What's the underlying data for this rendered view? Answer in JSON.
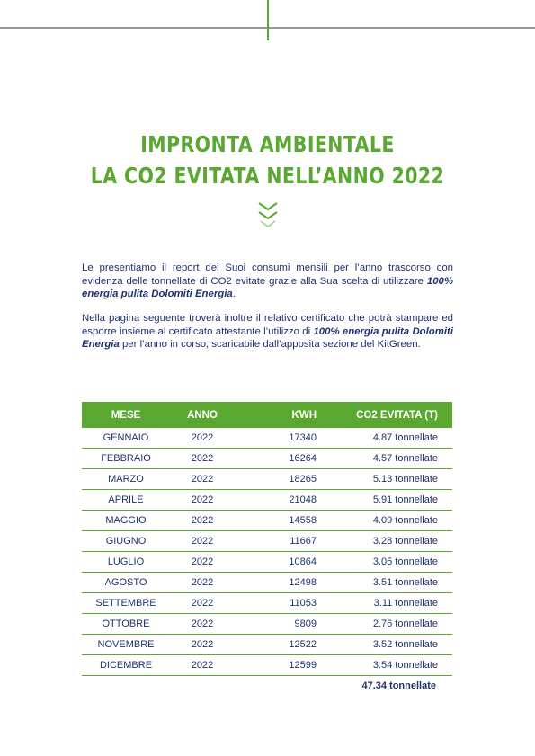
{
  "header": {
    "title_line1": "IMPRONTA AMBIENTALE",
    "title_line2": "LA CO2 EVITATA NELL’ANNO 2022"
  },
  "paragraphs": [
    {
      "segments": [
        {
          "text": "Le presentiamo il report dei Suoi consumi mensili per l’anno trascorso con evidenza delle tonnellate di CO2 evitate grazie alla Sua scelta di utilizzare ",
          "bold": false
        },
        {
          "text": "100% energia pulita Dolomiti Energia",
          "bold": true
        },
        {
          "text": ".",
          "bold": false
        }
      ]
    },
    {
      "segments": [
        {
          "text": "Nella pagina seguente troverà inoltre il relativo certificato che potrà stampare ed esporre insieme al certificato attestante l’utilizzo di ",
          "bold": false
        },
        {
          "text": "100% energia pulita Dolomiti Energia",
          "bold": true
        },
        {
          "text": " per l’anno in corso, scaricabile dall’apposita sezione del KitGreen.",
          "bold": false
        }
      ]
    }
  ],
  "table": {
    "columns": [
      "MESE",
      "ANNO",
      "KWH",
      "CO2 EVITATA (T)"
    ],
    "rows": [
      [
        "GENNAIO",
        "2022",
        "17340",
        "4.87 tonnellate"
      ],
      [
        "FEBBRAIO",
        "2022",
        "16264",
        "4.57 tonnellate"
      ],
      [
        "MARZO",
        "2022",
        "18265",
        "5.13 tonnellate"
      ],
      [
        "APRILE",
        "2022",
        "21048",
        "5.91 tonnellate"
      ],
      [
        "MAGGIO",
        "2022",
        "14558",
        "4.09 tonnellate"
      ],
      [
        "GIUGNO",
        "2022",
        "11667",
        "3.28 tonnellate"
      ],
      [
        "LUGLIO",
        "2022",
        "10864",
        "3.05 tonnellate"
      ],
      [
        "AGOSTO",
        "2022",
        "12498",
        "3.51 tonnellate"
      ],
      [
        "SETTEMBRE",
        "2022",
        "11053",
        "3.11 tonnellate"
      ],
      [
        "OTTOBRE",
        "2022",
        "9809",
        "2.76 tonnellate"
      ],
      [
        "NOVEMBRE",
        "2022",
        "12522",
        "3.52 tonnellate"
      ],
      [
        "DICEMBRE",
        "2022",
        "12599",
        "3.54 tonnellate"
      ]
    ],
    "total": "47.34 tonnellate"
  }
}
